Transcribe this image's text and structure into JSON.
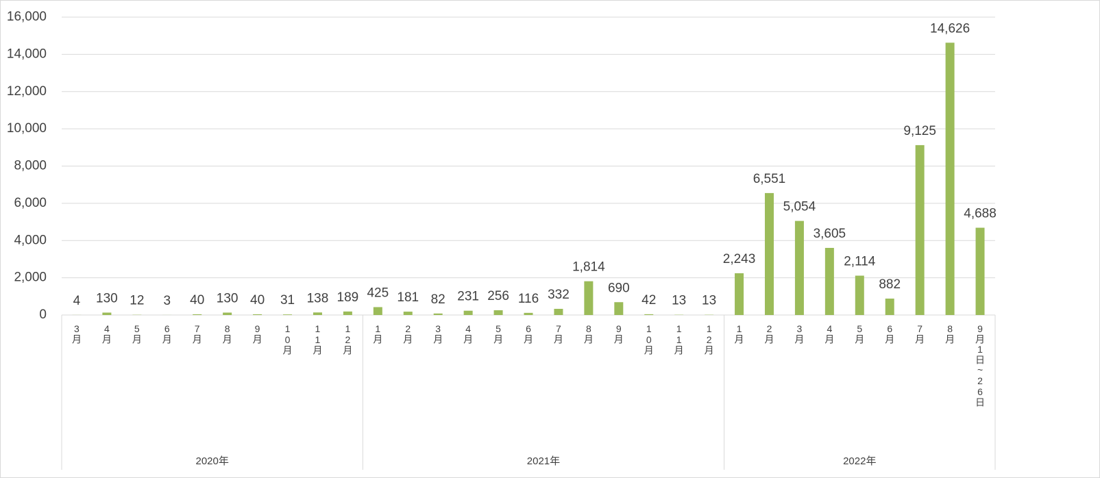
{
  "chart_data": {
    "type": "bar",
    "color": "#9bbb59",
    "grid": true,
    "groups": [
      {
        "label": "2020年",
        "categories": [
          "3月",
          "4月",
          "5月",
          "6月",
          "7月",
          "8月",
          "9月",
          "10月",
          "11月",
          "12月"
        ]
      },
      {
        "label": "2021年",
        "categories": [
          "1月",
          "2月",
          "3月",
          "4月",
          "5月",
          "6月",
          "7月",
          "8月",
          "9月",
          "10月",
          "11月",
          "12月"
        ]
      },
      {
        "label": "2022年",
        "categories": [
          "1月",
          "2月",
          "3月",
          "4月",
          "5月",
          "6月",
          "7月",
          "8月",
          "9月1日~26日"
        ]
      }
    ],
    "values": [
      4,
      130,
      12,
      3,
      40,
      130,
      40,
      31,
      138,
      189,
      425,
      181,
      82,
      231,
      256,
      116,
      332,
      1814,
      690,
      42,
      13,
      13,
      2243,
      6551,
      5054,
      3605,
      2114,
      882,
      9125,
      14626,
      4688
    ],
    "value_labels": [
      "4",
      "130",
      "12",
      "3",
      "40",
      "130",
      "40",
      "31",
      "138",
      "189",
      "425",
      "181",
      "82",
      "231",
      "256",
      "116",
      "332",
      "1,814",
      "690",
      "42",
      "13",
      "13",
      "2,243",
      "6,551",
      "5,054",
      "3,605",
      "2,114",
      "882",
      "9,125",
      "14,626",
      "4,688"
    ],
    "ylim": [
      0,
      16000
    ],
    "yticks": [
      0,
      {
        "value": 2000,
        "label": "2,000"
      },
      {
        "value": 4000,
        "label": "4,000"
      },
      {
        "value": 6000,
        "label": "6,000"
      },
      {
        "value": 8000,
        "label": "8,000"
      },
      {
        "value": 10000,
        "label": "10,000"
      },
      {
        "value": 12000,
        "label": "12,000"
      },
      {
        "value": 14000,
        "label": "14,000"
      },
      {
        "value": 16000,
        "label": "16,000"
      }
    ]
  }
}
